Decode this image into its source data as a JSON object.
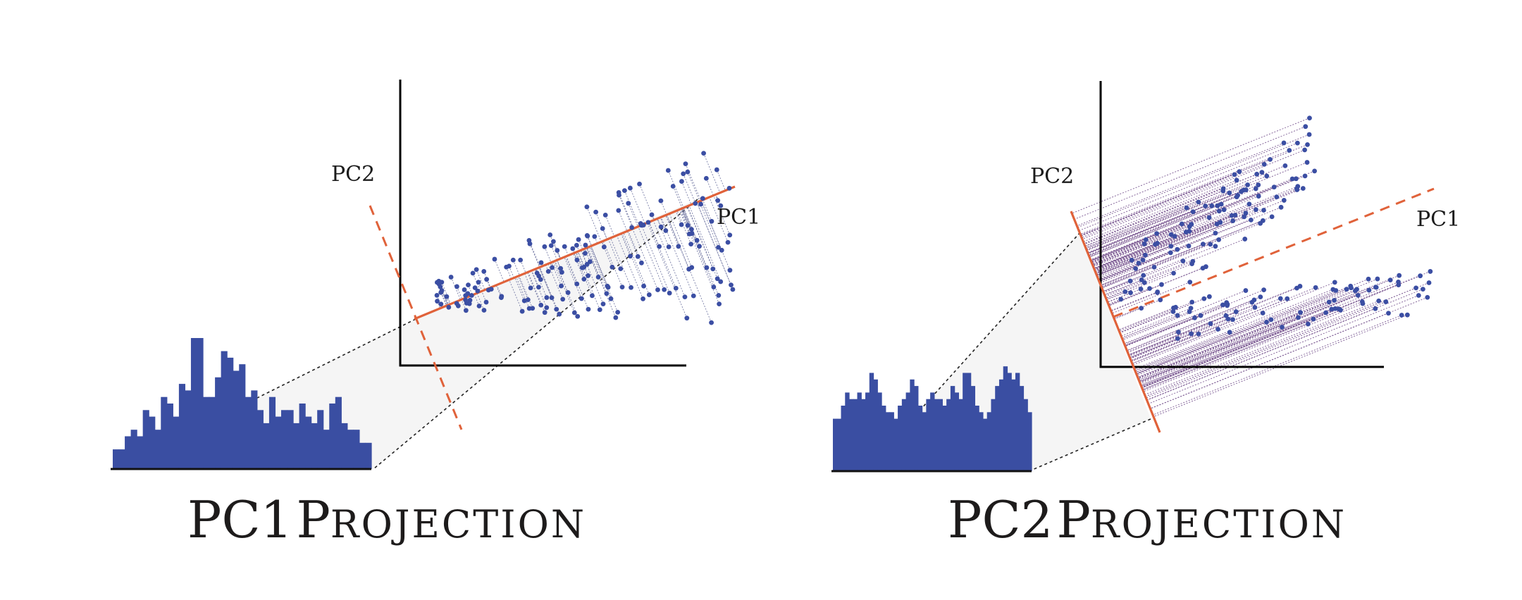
{
  "panels": [
    {
      "id": "pc1",
      "title": "PC1 Projection",
      "title_parts": {
        "prefix": "PC",
        "digit": "1",
        "word_initial": "P",
        "word_rest": "ROJECTION"
      },
      "axis_labels": {
        "pc1": "PC1",
        "pc2": "PC2"
      },
      "projection_axis": "PC1",
      "histogram_bins": [
        3,
        3,
        5,
        6,
        5,
        9,
        8,
        6,
        11,
        10,
        8,
        13,
        12,
        20,
        20,
        11,
        11,
        14,
        18,
        17,
        15,
        16,
        11,
        12,
        9,
        7,
        11,
        8,
        9,
        9,
        7,
        10,
        8,
        7,
        9,
        6,
        10,
        11,
        7,
        6,
        6,
        4,
        4
      ]
    },
    {
      "id": "pc2",
      "title": "PC2 Projection",
      "title_parts": {
        "prefix": "PC",
        "digit": "2",
        "word_initial": "P",
        "word_rest": "ROJECTION"
      },
      "axis_labels": {
        "pc1": "PC1",
        "pc2": "PC2"
      },
      "projection_axis": "PC2",
      "histogram_bins": [
        8,
        8,
        10,
        12,
        11,
        11,
        12,
        11,
        12,
        15,
        14,
        12,
        10,
        9,
        9,
        8,
        10,
        11,
        12,
        14,
        13,
        10,
        9,
        11,
        12,
        11,
        11,
        10,
        11,
        13,
        12,
        11,
        15,
        15,
        13,
        10,
        9,
        8,
        9,
        11,
        13,
        14,
        16,
        15,
        14,
        15,
        13,
        11,
        9
      ]
    }
  ],
  "colors": {
    "points": "#3b4ea3",
    "histogram": "#3a4ea2",
    "principal_axis": "#e0623a",
    "axes": "#000000"
  }
}
